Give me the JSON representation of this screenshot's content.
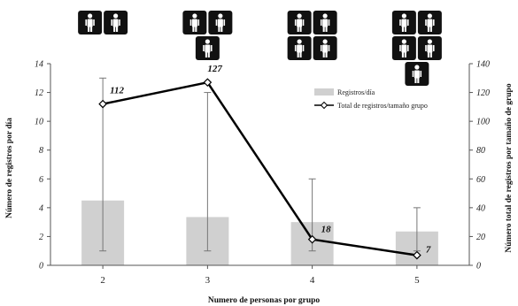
{
  "chart_data": {
    "type": "bar",
    "categories": [
      "2",
      "3",
      "4",
      "5"
    ],
    "xlabel": "Numero de personas por grupo",
    "ylabel": "Número de registros por día",
    "y2label": "Número total de registros por tamaño de grupo",
    "ylim": [
      0,
      14
    ],
    "y2lim": [
      0,
      140
    ],
    "yticks": [
      "0",
      "2",
      "4",
      "6",
      "8",
      "10",
      "12",
      "14"
    ],
    "y2ticks": [
      "0",
      "20",
      "40",
      "60",
      "80",
      "100",
      "120",
      "140"
    ],
    "grid": false,
    "legend_position": "top-right",
    "series": [
      {
        "name": "Registros/día",
        "type": "bar",
        "axis": "left",
        "values": [
          4.5,
          3.35,
          3.0,
          2.35
        ],
        "error_low": [
          1.0,
          1.0,
          1.0,
          1.0
        ],
        "error_high": [
          13.0,
          12.0,
          6.0,
          4.0
        ],
        "color": "#d0d0d0"
      },
      {
        "name": "Total de registros/tamaño grupo",
        "type": "line",
        "axis": "right",
        "values": [
          112,
          127,
          18,
          7
        ],
        "labels": [
          "112",
          "127",
          "18",
          "7"
        ],
        "color": "#000000"
      }
    ],
    "group_icons": [
      {
        "category": "2",
        "count": 2
      },
      {
        "category": "3",
        "count": 3
      },
      {
        "category": "4",
        "count": 4
      },
      {
        "category": "5",
        "count": 5
      }
    ]
  }
}
